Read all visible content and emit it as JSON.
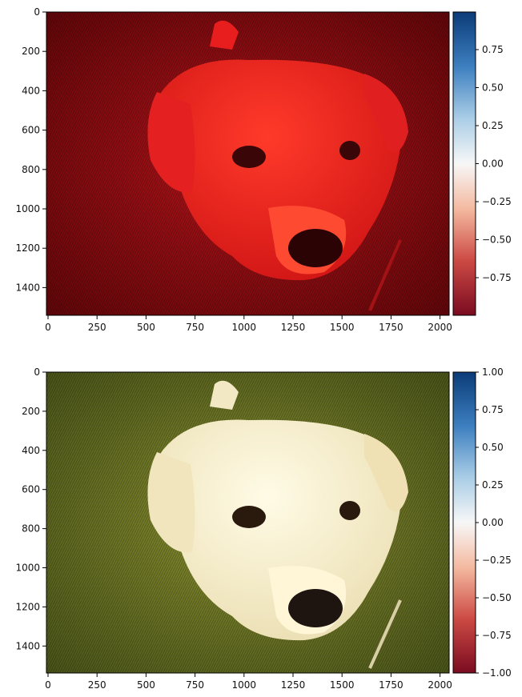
{
  "panels": [
    {
      "x_ticks": [
        "0",
        "250",
        "500",
        "750",
        "1000",
        "1250",
        "1500",
        "1750",
        "2000"
      ],
      "y_ticks": [
        "0",
        "200",
        "400",
        "600",
        "800",
        "1000",
        "1200",
        "1400"
      ],
      "colorbar_ticks": [
        "0.75",
        "0.50",
        "0.25",
        "0.00",
        "−0.25",
        "−0.50",
        "−0.75"
      ],
      "image_tint": "#d8181a"
    },
    {
      "x_ticks": [
        "0",
        "250",
        "500",
        "750",
        "1000",
        "1250",
        "1500",
        "1750",
        "2000"
      ],
      "y_ticks": [
        "0",
        "200",
        "400",
        "600",
        "800",
        "1000",
        "1200",
        "1400"
      ],
      "colorbar_ticks": [
        "1.00",
        "0.75",
        "0.50",
        "0.25",
        "0.00",
        "−0.25",
        "−0.50",
        "−0.75",
        "−1.00"
      ],
      "image_tint": "#7a8a2a"
    }
  ],
  "colorbar": {
    "top_color": "#0b3b78",
    "mid_color": "#f7f7f7",
    "bottom_color": "#7a0b20"
  }
}
